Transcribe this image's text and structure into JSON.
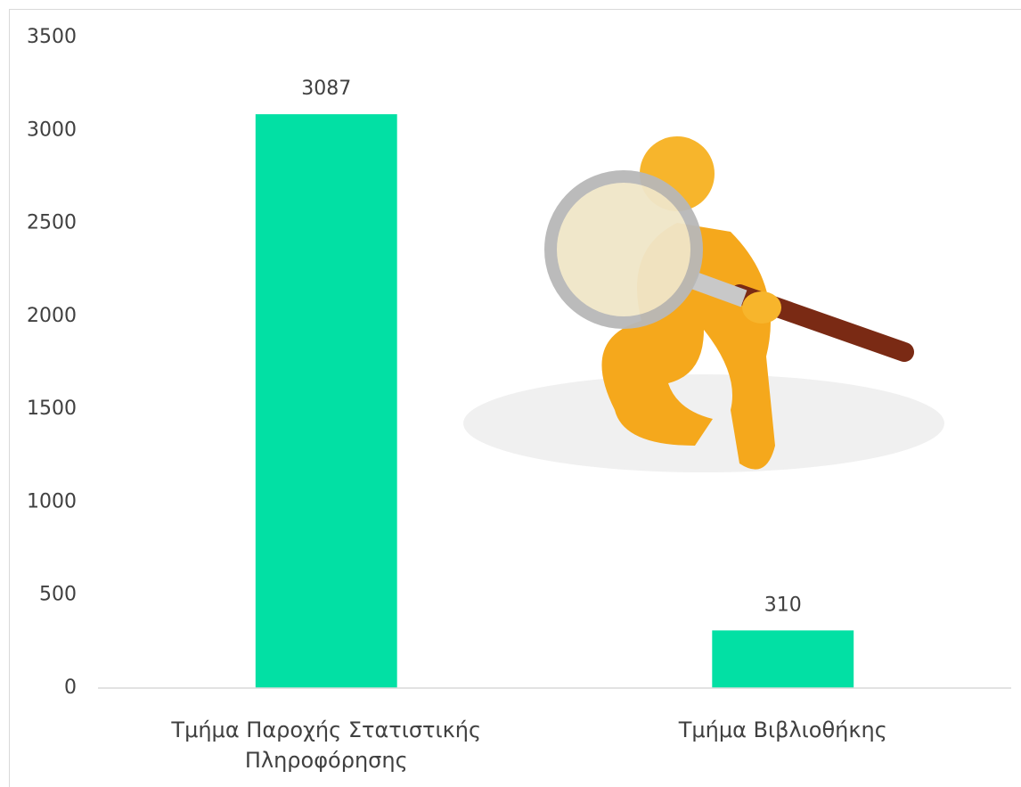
{
  "chart_data": {
    "type": "bar",
    "categories": [
      "Τμήμα Παροχής Στατιστικής Πληροφόρησης",
      "Τμήμα Βιβλιοθήκης"
    ],
    "values": [
      3087,
      310
    ],
    "color": "#02e0a4",
    "ylim": [
      0,
      3500
    ],
    "yticks": [
      0,
      500,
      1000,
      1500,
      2000,
      2500,
      3000,
      3500
    ],
    "grid": false
  }
}
